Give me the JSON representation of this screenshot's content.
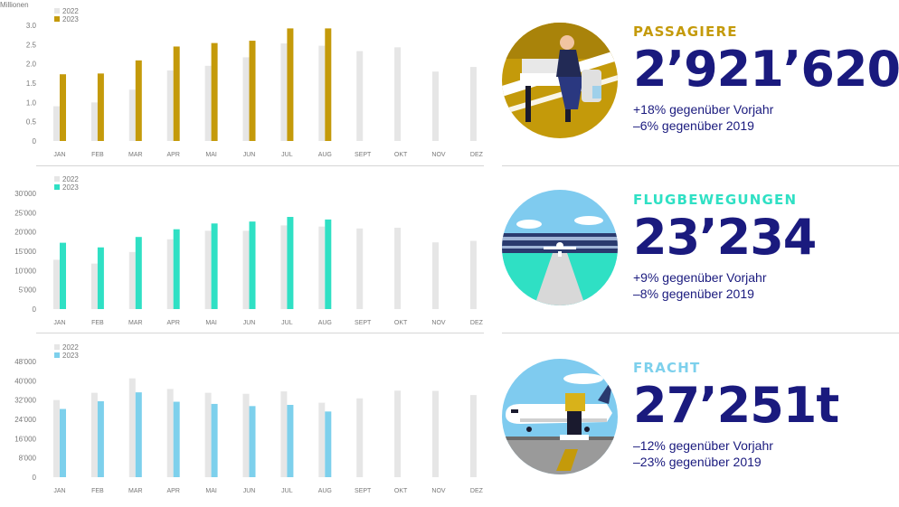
{
  "charts": [
    {
      "unit": "Millionen",
      "legend": [
        "2022",
        "2023"
      ],
      "ticks": [
        "0",
        "0.5",
        "1.0",
        "1.5",
        "2.0",
        "2.5",
        "3.0"
      ],
      "months": [
        "JAN",
        "FEB",
        "MAR",
        "APR",
        "MAI",
        "JUN",
        "JUL",
        "AUG",
        "SEPT",
        "OKT",
        "NOV",
        "DEZ"
      ]
    },
    {
      "unit": "",
      "legend": [
        "2022",
        "2023"
      ],
      "ticks": [
        "0",
        "5'000",
        "10'000",
        "15'000",
        "20'000",
        "25'000",
        "30'000"
      ],
      "months": [
        "JAN",
        "FEB",
        "MAR",
        "APR",
        "MAI",
        "JUN",
        "JUL",
        "AUG",
        "SEPT",
        "OKT",
        "NOV",
        "DEZ"
      ]
    },
    {
      "unit": "",
      "legend": [
        "2022",
        "2023"
      ],
      "ticks": [
        "0",
        "8'000",
        "16'000",
        "24'000",
        "32'000",
        "40'000",
        "48'000"
      ],
      "months": [
        "JAN",
        "FEB",
        "MAR",
        "APR",
        "MAI",
        "JUN",
        "JUL",
        "AUG",
        "SEPT",
        "OKT",
        "NOV",
        "DEZ"
      ]
    }
  ],
  "chart_data": [
    {
      "type": "bar",
      "categories": [
        "JAN",
        "FEB",
        "MAR",
        "APR",
        "MAI",
        "JUN",
        "JUL",
        "AUG",
        "SEPT",
        "OKT",
        "NOV",
        "DEZ"
      ],
      "series": [
        {
          "name": "2022",
          "values": [
            0.9,
            1.0,
            1.33,
            1.83,
            1.95,
            2.17,
            2.53,
            2.47,
            2.33,
            2.43,
            1.8,
            1.92
          ]
        },
        {
          "name": "2023",
          "values": [
            1.73,
            1.75,
            2.09,
            2.45,
            2.54,
            2.6,
            2.92,
            2.92,
            null,
            null,
            null,
            null
          ]
        }
      ],
      "ylabel": "Millionen",
      "ylim": [
        0,
        3.0
      ],
      "colors": {
        "2022": "#e6e6e6",
        "2023": "#c49a0a"
      }
    },
    {
      "type": "bar",
      "categories": [
        "JAN",
        "FEB",
        "MAR",
        "APR",
        "MAI",
        "JUN",
        "JUL",
        "AUG",
        "SEPT",
        "OKT",
        "NOV",
        "DEZ"
      ],
      "series": [
        {
          "name": "2022",
          "values": [
            12800,
            11800,
            14800,
            18100,
            20300,
            20300,
            21700,
            21400,
            20900,
            21100,
            17300,
            17700
          ]
        },
        {
          "name": "2023",
          "values": [
            17200,
            16000,
            18700,
            20700,
            22200,
            22700,
            23900,
            23234,
            null,
            null,
            null,
            null
          ]
        }
      ],
      "ylim": [
        0,
        30000
      ],
      "colors": {
        "2022": "#e6e6e6",
        "2023": "#2fe0c4"
      }
    },
    {
      "type": "bar",
      "categories": [
        "JAN",
        "FEB",
        "MAR",
        "APR",
        "MAI",
        "JUN",
        "JUL",
        "AUG",
        "SEPT",
        "OKT",
        "NOV",
        "DEZ"
      ],
      "series": [
        {
          "name": "2022",
          "values": [
            32000,
            35000,
            41000,
            36600,
            35000,
            34600,
            35600,
            30900,
            32700,
            35900,
            35800,
            34100
          ]
        },
        {
          "name": "2023",
          "values": [
            28300,
            31500,
            35200,
            31300,
            30400,
            29500,
            30000,
            27251,
            null,
            null,
            null,
            null
          ]
        }
      ],
      "ylim": [
        0,
        48000
      ],
      "colors": {
        "2022": "#e6e6e6",
        "2023": "#7dd0ec"
      }
    }
  ],
  "stats": [
    {
      "title": "PASSAGIERE",
      "value": "2’921’620",
      "line1": "+18% gegenüber Vorjahr",
      "line2": "–6% gegenüber 2019",
      "title_color": "#c49a0a"
    },
    {
      "title": "FLUGBEWEGUNGEN",
      "value": "23’234",
      "line1": "+9% gegenüber Vorjahr",
      "line2": "–8% gegenüber 2019",
      "title_color": "#2fe0c4"
    },
    {
      "title": "FRACHT",
      "value": "27’251t",
      "line1": "–12% gegenüber Vorjahr",
      "line2": "–23% gegenüber 2019",
      "title_color": "#7dd0ec"
    }
  ]
}
